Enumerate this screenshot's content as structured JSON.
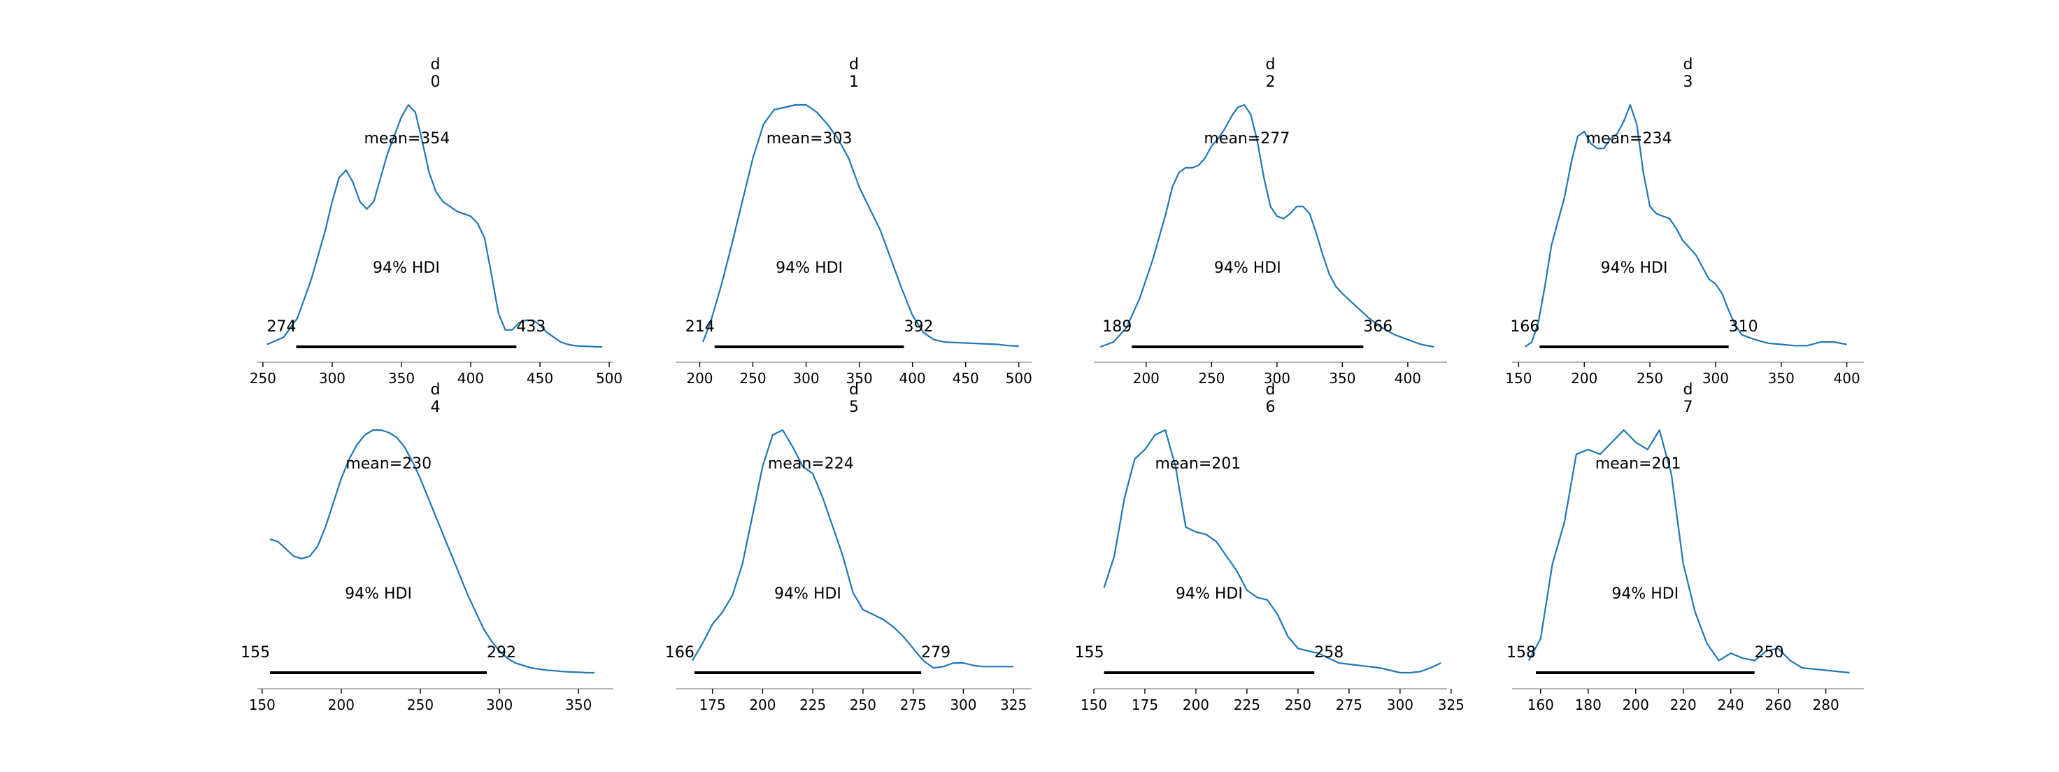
{
  "figure": {
    "background": "#ffffff",
    "line_color": "#1f77b4",
    "hdi_color": "#000000",
    "axis_color": "#9e9e9e"
  },
  "chart_data": [
    {
      "type": "area",
      "variable": "d",
      "index": "0",
      "title_lines": [
        "d",
        "0"
      ],
      "mean_label": "mean=354",
      "mean": 354,
      "hdi_label": "94% HDI",
      "hdi": [
        274,
        433
      ],
      "hdi_low_label": "274",
      "hdi_high_label": "433",
      "xlim": [
        246,
        503
      ],
      "xticks": [
        250,
        300,
        350,
        400,
        450,
        500
      ],
      "xtick_labels": [
        "250",
        "300",
        "350",
        "400",
        "450",
        "500"
      ],
      "density": {
        "x": [
          253,
          265,
          275,
          285,
          295,
          300,
          305,
          310,
          315,
          320,
          325,
          330,
          340,
          350,
          355,
          360,
          365,
          370,
          375,
          380,
          385,
          390,
          395,
          400,
          405,
          410,
          415,
          420,
          425,
          430,
          435,
          440,
          445,
          450,
          455,
          460,
          465,
          470,
          475,
          480,
          485,
          490,
          495
        ],
        "y": [
          0.01,
          0.04,
          0.12,
          0.28,
          0.48,
          0.6,
          0.7,
          0.73,
          0.68,
          0.6,
          0.57,
          0.6,
          0.8,
          0.95,
          1.0,
          0.97,
          0.85,
          0.72,
          0.64,
          0.6,
          0.58,
          0.56,
          0.55,
          0.54,
          0.51,
          0.45,
          0.3,
          0.14,
          0.07,
          0.07,
          0.1,
          0.11,
          0.11,
          0.09,
          0.06,
          0.04,
          0.02,
          0.01,
          0.005,
          0.003,
          0.002,
          0.0,
          0.0
        ]
      }
    },
    {
      "type": "area",
      "variable": "d",
      "index": "1",
      "title_lines": [
        "d",
        "1"
      ],
      "mean_label": "mean=303",
      "mean": 303,
      "hdi_label": "94% HDI",
      "hdi": [
        214,
        392
      ],
      "hdi_low_label": "214",
      "hdi_high_label": "392",
      "xlim": [
        178,
        512
      ],
      "xticks": [
        200,
        250,
        300,
        350,
        400,
        450,
        500
      ],
      "xtick_labels": [
        "200",
        "250",
        "300",
        "350",
        "400",
        "450",
        "500"
      ],
      "density": {
        "x": [
          203,
          210,
          220,
          230,
          240,
          250,
          260,
          270,
          280,
          290,
          300,
          310,
          320,
          330,
          340,
          350,
          360,
          370,
          380,
          390,
          400,
          410,
          420,
          430,
          440,
          450,
          460,
          470,
          480,
          490,
          500
        ],
        "y": [
          0.02,
          0.1,
          0.25,
          0.42,
          0.6,
          0.78,
          0.92,
          0.98,
          0.99,
          1.0,
          1.0,
          0.97,
          0.92,
          0.86,
          0.78,
          0.66,
          0.57,
          0.48,
          0.36,
          0.24,
          0.13,
          0.06,
          0.03,
          0.02,
          0.018,
          0.016,
          0.014,
          0.012,
          0.01,
          0.005,
          0.003
        ]
      }
    },
    {
      "type": "area",
      "variable": "d",
      "index": "2",
      "title_lines": [
        "d",
        "2"
      ],
      "mean_label": "mean=277",
      "mean": 277,
      "hdi_label": "94% HDI",
      "hdi": [
        189,
        366
      ],
      "hdi_low_label": "189",
      "hdi_high_label": "366",
      "xlim": [
        160,
        430
      ],
      "xticks": [
        200,
        250,
        300,
        350,
        400
      ],
      "xtick_labels": [
        "200",
        "250",
        "300",
        "350",
        "400"
      ],
      "density": {
        "x": [
          165,
          175,
          185,
          195,
          205,
          215,
          220,
          225,
          230,
          235,
          240,
          245,
          250,
          255,
          260,
          265,
          270,
          275,
          280,
          285,
          290,
          295,
          300,
          305,
          310,
          315,
          320,
          325,
          330,
          335,
          340,
          345,
          350,
          360,
          370,
          380,
          390,
          400,
          410,
          420
        ],
        "y": [
          0.0,
          0.02,
          0.08,
          0.2,
          0.36,
          0.55,
          0.66,
          0.72,
          0.74,
          0.74,
          0.75,
          0.78,
          0.83,
          0.86,
          0.9,
          0.95,
          0.99,
          1.0,
          0.96,
          0.85,
          0.7,
          0.58,
          0.54,
          0.53,
          0.55,
          0.58,
          0.58,
          0.55,
          0.47,
          0.38,
          0.3,
          0.25,
          0.22,
          0.17,
          0.12,
          0.08,
          0.05,
          0.03,
          0.01,
          0.0
        ]
      }
    },
    {
      "type": "area",
      "variable": "d",
      "index": "3",
      "title_lines": [
        "d",
        "3"
      ],
      "mean_label": "mean=234",
      "mean": 234,
      "hdi_label": "94% HDI",
      "hdi": [
        166,
        310
      ],
      "hdi_low_label": "166",
      "hdi_high_label": "310",
      "xlim": [
        145,
        413
      ],
      "xticks": [
        150,
        200,
        250,
        300,
        350,
        400
      ],
      "xtick_labels": [
        "150",
        "200",
        "250",
        "300",
        "350",
        "400"
      ],
      "density": {
        "x": [
          155,
          160,
          165,
          170,
          175,
          180,
          185,
          190,
          195,
          200,
          205,
          210,
          215,
          220,
          225,
          230,
          235,
          240,
          245,
          250,
          255,
          260,
          265,
          270,
          275,
          280,
          285,
          290,
          295,
          300,
          305,
          310,
          315,
          320,
          325,
          330,
          340,
          350,
          360,
          370,
          380,
          390,
          400
        ],
        "y": [
          0.0,
          0.02,
          0.1,
          0.25,
          0.42,
          0.52,
          0.62,
          0.76,
          0.87,
          0.89,
          0.84,
          0.82,
          0.82,
          0.86,
          0.88,
          0.93,
          1.0,
          0.92,
          0.72,
          0.58,
          0.55,
          0.54,
          0.53,
          0.49,
          0.44,
          0.41,
          0.38,
          0.33,
          0.28,
          0.26,
          0.22,
          0.15,
          0.09,
          0.05,
          0.04,
          0.03,
          0.015,
          0.01,
          0.005,
          0.005,
          0.02,
          0.02,
          0.01
        ]
      }
    },
    {
      "type": "area",
      "variable": "d",
      "index": "4",
      "title_lines": [
        "d",
        "4"
      ],
      "mean_label": "mean=230",
      "mean": 230,
      "hdi_label": "94% HDI",
      "hdi": [
        155,
        292
      ],
      "hdi_low_label": "155",
      "hdi_high_label": "292",
      "xlim": [
        147,
        372
      ],
      "xticks": [
        150,
        200,
        250,
        300,
        350
      ],
      "xtick_labels": [
        "150",
        "200",
        "250",
        "300",
        "350"
      ],
      "density": {
        "x": [
          155,
          160,
          165,
          170,
          175,
          180,
          185,
          190,
          195,
          200,
          205,
          210,
          215,
          220,
          225,
          230,
          235,
          240,
          245,
          250,
          255,
          260,
          265,
          270,
          275,
          280,
          285,
          290,
          295,
          300,
          305,
          310,
          315,
          320,
          325,
          330,
          335,
          340,
          345,
          350,
          355,
          360
        ],
        "y": [
          0.55,
          0.54,
          0.51,
          0.48,
          0.47,
          0.48,
          0.52,
          0.6,
          0.7,
          0.8,
          0.88,
          0.94,
          0.98,
          1.0,
          1.0,
          0.99,
          0.97,
          0.93,
          0.87,
          0.8,
          0.72,
          0.64,
          0.56,
          0.48,
          0.4,
          0.32,
          0.25,
          0.18,
          0.13,
          0.09,
          0.06,
          0.04,
          0.03,
          0.02,
          0.015,
          0.01,
          0.008,
          0.005,
          0.003,
          0.002,
          0.0,
          0.0
        ]
      }
    },
    {
      "type": "area",
      "variable": "d",
      "index": "5",
      "title_lines": [
        "d",
        "5"
      ],
      "mean_label": "mean=224",
      "mean": 224,
      "hdi_label": "94% HDI",
      "hdi": [
        166,
        279
      ],
      "hdi_low_label": "166",
      "hdi_high_label": "279",
      "xlim": [
        157,
        334
      ],
      "xticks": [
        175,
        200,
        225,
        250,
        275,
        300,
        325
      ],
      "xtick_labels": [
        "175",
        "200",
        "225",
        "250",
        "275",
        "300",
        "325"
      ],
      "density": {
        "x": [
          165,
          170,
          175,
          180,
          185,
          190,
          195,
          200,
          205,
          210,
          215,
          220,
          225,
          230,
          235,
          240,
          245,
          250,
          255,
          260,
          265,
          270,
          275,
          280,
          285,
          290,
          295,
          300,
          305,
          310,
          315,
          320,
          325
        ],
        "y": [
          0.05,
          0.12,
          0.2,
          0.25,
          0.32,
          0.45,
          0.65,
          0.85,
          0.98,
          1.0,
          0.93,
          0.85,
          0.82,
          0.72,
          0.6,
          0.48,
          0.33,
          0.26,
          0.24,
          0.22,
          0.19,
          0.15,
          0.1,
          0.05,
          0.02,
          0.025,
          0.04,
          0.04,
          0.03,
          0.025,
          0.025,
          0.025,
          0.025
        ]
      }
    },
    {
      "type": "area",
      "variable": "d",
      "index": "6",
      "title_lines": [
        "d",
        "6"
      ],
      "mean_label": "mean=201",
      "mean": 201,
      "hdi_label": "94% HDI",
      "hdi": [
        155,
        258
      ],
      "hdi_low_label": "155",
      "hdi_high_label": "258",
      "xlim": [
        150,
        323
      ],
      "xticks": [
        150,
        175,
        200,
        225,
        250,
        275,
        300,
        325
      ],
      "xtick_labels": [
        "150",
        "175",
        "200",
        "225",
        "250",
        "275",
        "300",
        "325"
      ],
      "density": {
        "x": [
          155,
          160,
          165,
          170,
          175,
          180,
          185,
          190,
          195,
          200,
          205,
          210,
          215,
          220,
          225,
          230,
          235,
          240,
          245,
          250,
          255,
          260,
          265,
          270,
          275,
          280,
          285,
          290,
          295,
          300,
          305,
          310,
          315,
          320
        ],
        "y": [
          0.35,
          0.48,
          0.72,
          0.88,
          0.92,
          0.98,
          1.0,
          0.85,
          0.6,
          0.58,
          0.57,
          0.54,
          0.48,
          0.42,
          0.34,
          0.31,
          0.3,
          0.24,
          0.15,
          0.1,
          0.09,
          0.08,
          0.06,
          0.04,
          0.035,
          0.03,
          0.025,
          0.02,
          0.01,
          0.0,
          0.0,
          0.005,
          0.02,
          0.04
        ]
      }
    },
    {
      "type": "area",
      "variable": "d",
      "index": "7",
      "title_lines": [
        "d",
        "7"
      ],
      "mean_label": "mean=201",
      "mean": 201,
      "hdi_label": "94% HDI",
      "hdi": [
        158,
        250
      ],
      "hdi_low_label": "158",
      "hdi_high_label": "250",
      "xlim": [
        148,
        296
      ],
      "xticks": [
        160,
        180,
        200,
        220,
        240,
        260,
        280
      ],
      "xtick_labels": [
        "160",
        "180",
        "200",
        "220",
        "240",
        "260",
        "280"
      ],
      "density": {
        "x": [
          155,
          160,
          165,
          170,
          175,
          180,
          185,
          190,
          195,
          200,
          205,
          210,
          215,
          220,
          225,
          230,
          235,
          240,
          245,
          250,
          255,
          260,
          265,
          270,
          275,
          280,
          285,
          290
        ],
        "y": [
          0.05,
          0.14,
          0.45,
          0.62,
          0.9,
          0.92,
          0.9,
          0.95,
          1.0,
          0.95,
          0.92,
          1.0,
          0.82,
          0.45,
          0.25,
          0.12,
          0.05,
          0.08,
          0.06,
          0.05,
          0.09,
          0.1,
          0.05,
          0.02,
          0.015,
          0.01,
          0.005,
          0.0
        ]
      }
    }
  ]
}
